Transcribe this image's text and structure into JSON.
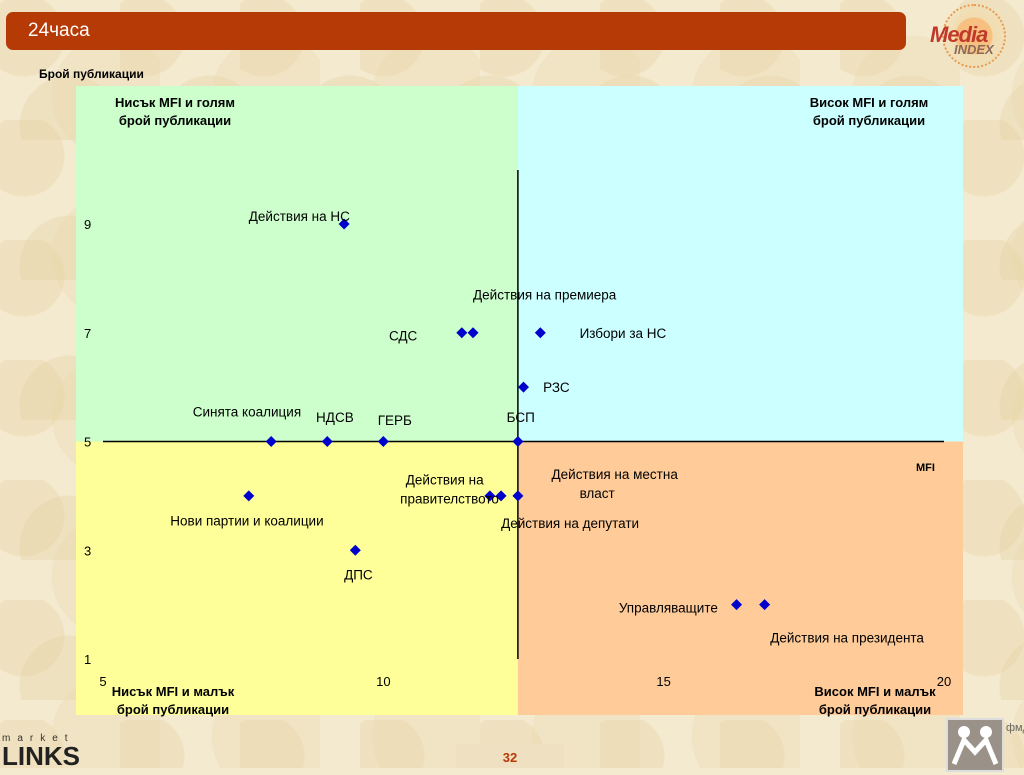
{
  "header": {
    "title": "24часа"
  },
  "logos": {
    "media_index": [
      "Media",
      "INDEX"
    ],
    "market_links": [
      "market",
      "LINKS"
    ],
    "fmd": "фмд"
  },
  "page_number": "32",
  "quadrants": {
    "top_left": [
      "Нисък MFI и голям",
      "брой публикации"
    ],
    "top_right": [
      "Висок MFI и голям",
      "брой публикации"
    ],
    "bottom_left": [
      "Нисък MFI и малък",
      "брой публикации"
    ],
    "bottom_right": [
      "Висок MFI и малък",
      "брой публикации"
    ]
  },
  "colors": {
    "title_bar": "#b63a06",
    "top_left": "#ccffcc",
    "top_right": "#ccffff",
    "bottom_left": "#ffff99",
    "bottom_right": "#ffcc99",
    "marker": "#0000cc"
  },
  "chart_data": {
    "type": "scatter",
    "ylabel": "Брой публикации",
    "xlabel": "MFI",
    "xlim": [
      5,
      20
    ],
    "ylim": [
      1,
      9
    ],
    "xticks": [
      5,
      10,
      15,
      20
    ],
    "yticks": [
      1,
      3,
      5,
      7,
      9
    ],
    "x_divider": 12.4,
    "y_divider": 5,
    "points": [
      {
        "x": 9.3,
        "y": 9
      },
      {
        "x": 11.4,
        "y": 7
      },
      {
        "x": 11.6,
        "y": 7
      },
      {
        "x": 12.8,
        "y": 7
      },
      {
        "x": 12.5,
        "y": 6
      },
      {
        "x": 8.0,
        "y": 5
      },
      {
        "x": 9.0,
        "y": 5
      },
      {
        "x": 10.0,
        "y": 5
      },
      {
        "x": 12.4,
        "y": 5
      },
      {
        "x": 7.6,
        "y": 4
      },
      {
        "x": 11.9,
        "y": 4
      },
      {
        "x": 12.1,
        "y": 4
      },
      {
        "x": 12.4,
        "y": 4
      },
      {
        "x": 9.5,
        "y": 3
      },
      {
        "x": 16.3,
        "y": 2
      },
      {
        "x": 16.8,
        "y": 2
      }
    ],
    "labels": [
      {
        "text": "Действия на НС",
        "x": 7.6,
        "y": 9.15
      },
      {
        "text": "Действия на премиера",
        "x": 11.6,
        "y": 7.7
      },
      {
        "text": "СДС",
        "x": 10.1,
        "y": 6.95
      },
      {
        "text": "Избори за НС",
        "x": 13.5,
        "y": 7.0
      },
      {
        "text": "РЗС",
        "x": 12.85,
        "y": 6.0
      },
      {
        "text": "Синята коалиция",
        "x": 6.6,
        "y": 5.55
      },
      {
        "text": "НДСВ",
        "x": 8.8,
        "y": 5.45
      },
      {
        "text": "ГЕРБ",
        "x": 9.9,
        "y": 5.4
      },
      {
        "text": "БСП",
        "x": 12.2,
        "y": 5.45
      },
      {
        "text": "Действия на",
        "x": 10.4,
        "y": 4.3
      },
      {
        "text": "правителството",
        "x": 10.3,
        "y": 3.95
      },
      {
        "text": "Действия на местна",
        "x": 13.0,
        "y": 4.4
      },
      {
        "text": "власт",
        "x": 13.5,
        "y": 4.05
      },
      {
        "text": "Нови партии и коалиции",
        "x": 6.2,
        "y": 3.55
      },
      {
        "text": "Действия на депутати",
        "x": 12.1,
        "y": 3.5
      },
      {
        "text": "ДПС",
        "x": 9.3,
        "y": 2.55
      },
      {
        "text": "Управляващите",
        "x": 14.2,
        "y": 1.95
      },
      {
        "text": "Действия на президента",
        "x": 16.9,
        "y": 1.4
      }
    ]
  }
}
